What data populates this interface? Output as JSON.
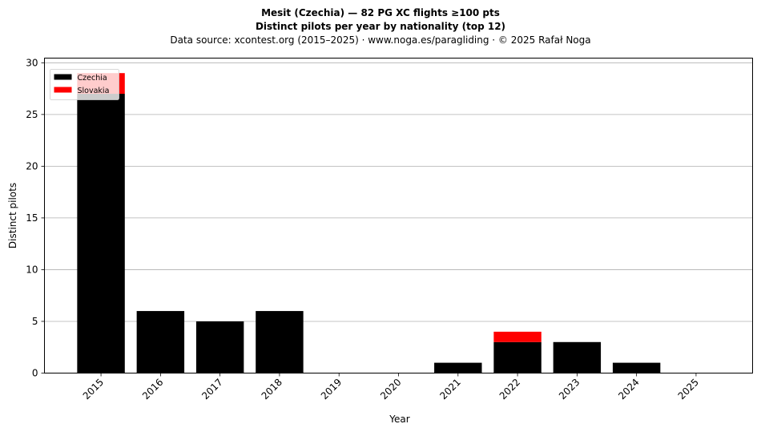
{
  "title_line1": "Mesit (Czechia)  —  82 PG XC flights ≥100 pts",
  "title_line2": "Distinct pilots per year by nationality (top 12)",
  "subtitle": "Data source: xcontest.org (2015–2025)  ·  www.noga.es/paragliding  ·  © 2025 Rafał Noga",
  "chart_data": {
    "type": "bar",
    "stacked": true,
    "categories": [
      "2015",
      "2016",
      "2017",
      "2018",
      "2019",
      "2020",
      "2021",
      "2022",
      "2023",
      "2024",
      "2025"
    ],
    "series": [
      {
        "name": "Czechia",
        "color": "#000000",
        "values": [
          27,
          6,
          5,
          6,
          0,
          0,
          1,
          3,
          3,
          1,
          0
        ]
      },
      {
        "name": "Slovakia",
        "color": "#ff0000",
        "values": [
          2,
          0,
          0,
          0,
          0,
          0,
          0,
          1,
          0,
          0,
          0
        ]
      }
    ],
    "xlabel": "Year",
    "ylabel": "Distinct pilots",
    "ylim": [
      0,
      30.45
    ],
    "yticks": [
      0,
      5,
      10,
      15,
      20,
      25,
      30
    ],
    "grid": "y",
    "legend_position": "top-left"
  }
}
